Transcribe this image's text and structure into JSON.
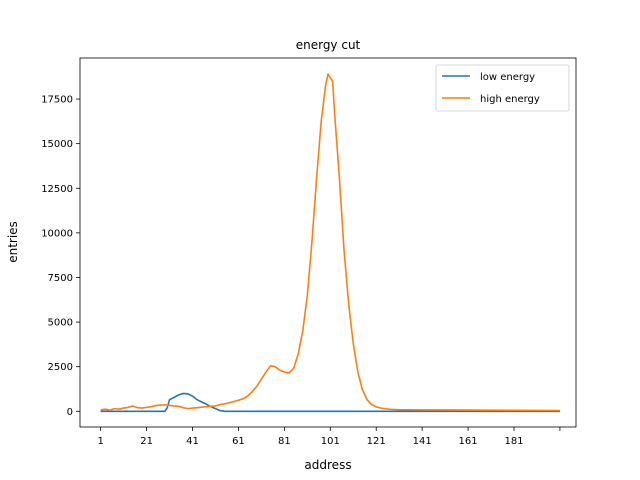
{
  "chart_data": {
    "type": "line",
    "title": "energy cut",
    "xlabel": "address",
    "ylabel": "entries",
    "xlim": [
      -8,
      208
    ],
    "ylim": [
      -880,
      19800
    ],
    "x_ticks": [
      1,
      21,
      41,
      61,
      81,
      101,
      121,
      141,
      161,
      181,
      201
    ],
    "x_tick_labels": [
      "1",
      "21",
      "41",
      "61",
      "81",
      "101",
      "121",
      "141",
      "161",
      "181",
      ""
    ],
    "y_ticks": [
      0,
      2500,
      5000,
      7500,
      10000,
      12500,
      15000,
      17500
    ],
    "y_tick_labels": [
      "0",
      "2500",
      "5000",
      "7500",
      "10000",
      "12500",
      "15000",
      "17500"
    ],
    "grid": false,
    "legend_position": "top-right",
    "series": [
      {
        "name": "low energy",
        "color": "#1f77b4",
        "points": [
          [
            1,
            0
          ],
          [
            29,
            0
          ],
          [
            30,
            200
          ],
          [
            31,
            650
          ],
          [
            33,
            780
          ],
          [
            35,
            920
          ],
          [
            37,
            1000
          ],
          [
            39,
            980
          ],
          [
            41,
            850
          ],
          [
            43,
            650
          ],
          [
            45,
            520
          ],
          [
            47,
            400
          ],
          [
            49,
            260
          ],
          [
            51,
            150
          ],
          [
            53,
            40
          ],
          [
            55,
            0
          ],
          [
            201,
            0
          ]
        ]
      },
      {
        "name": "high energy",
        "color": "#ff7f0e",
        "points": [
          [
            1,
            80
          ],
          [
            3,
            120
          ],
          [
            5,
            60
          ],
          [
            7,
            150
          ],
          [
            9,
            120
          ],
          [
            11,
            180
          ],
          [
            13,
            220
          ],
          [
            15,
            300
          ],
          [
            17,
            200
          ],
          [
            19,
            180
          ],
          [
            21,
            220
          ],
          [
            23,
            260
          ],
          [
            25,
            320
          ],
          [
            27,
            350
          ],
          [
            29,
            360
          ],
          [
            31,
            330
          ],
          [
            33,
            300
          ],
          [
            35,
            280
          ],
          [
            37,
            200
          ],
          [
            39,
            150
          ],
          [
            41,
            180
          ],
          [
            43,
            200
          ],
          [
            45,
            230
          ],
          [
            47,
            260
          ],
          [
            49,
            280
          ],
          [
            51,
            300
          ],
          [
            53,
            380
          ],
          [
            55,
            420
          ],
          [
            57,
            480
          ],
          [
            59,
            550
          ],
          [
            61,
            620
          ],
          [
            63,
            700
          ],
          [
            65,
            850
          ],
          [
            67,
            1100
          ],
          [
            69,
            1400
          ],
          [
            71,
            1800
          ],
          [
            73,
            2200
          ],
          [
            75,
            2550
          ],
          [
            77,
            2500
          ],
          [
            79,
            2300
          ],
          [
            81,
            2200
          ],
          [
            83,
            2150
          ],
          [
            85,
            2400
          ],
          [
            87,
            3200
          ],
          [
            89,
            4500
          ],
          [
            91,
            6500
          ],
          [
            93,
            9500
          ],
          [
            95,
            13000
          ],
          [
            97,
            16200
          ],
          [
            99,
            18300
          ],
          [
            100,
            18900
          ],
          [
            101,
            18700
          ],
          [
            102,
            18500
          ],
          [
            103,
            16500
          ],
          [
            105,
            13000
          ],
          [
            107,
            9000
          ],
          [
            109,
            6000
          ],
          [
            111,
            3800
          ],
          [
            113,
            2200
          ],
          [
            115,
            1200
          ],
          [
            117,
            650
          ],
          [
            119,
            380
          ],
          [
            121,
            250
          ],
          [
            123,
            180
          ],
          [
            125,
            140
          ],
          [
            127,
            110
          ],
          [
            129,
            100
          ],
          [
            131,
            90
          ],
          [
            141,
            80
          ],
          [
            151,
            75
          ],
          [
            161,
            70
          ],
          [
            171,
            60
          ],
          [
            181,
            55
          ],
          [
            191,
            50
          ],
          [
            201,
            45
          ]
        ]
      }
    ]
  }
}
